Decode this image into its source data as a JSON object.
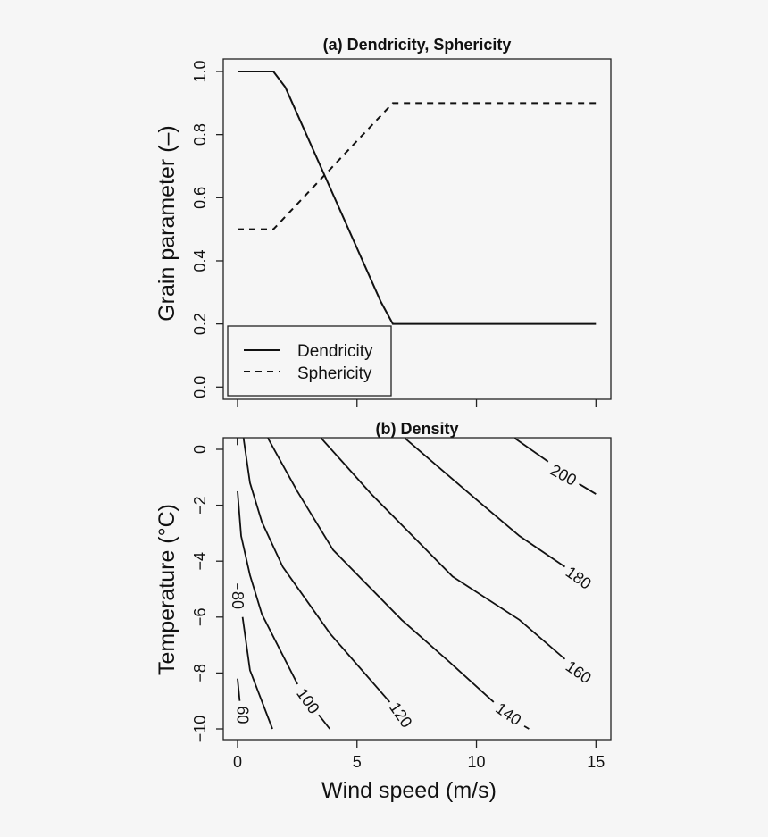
{
  "chart_data": [
    {
      "type": "line",
      "title": "(a) Dendricity, Sphericity",
      "xlabel": "",
      "ylabel": "Grain parameter (–)",
      "xlim": [
        0,
        15
      ],
      "ylim": [
        0,
        1
      ],
      "x_ticks": [
        0,
        5,
        10,
        15
      ],
      "y_ticks": [
        "0.0",
        "0.2",
        "0.4",
        "0.6",
        "0.8",
        "1.0"
      ],
      "grid": false,
      "legend_position": "bottom-left",
      "series": [
        {
          "name": "Dendricity",
          "style": "solid",
          "x": [
            0,
            1.5,
            2.0,
            6.0,
            6.5,
            15
          ],
          "y": [
            1.0,
            1.0,
            0.95,
            0.27,
            0.2,
            0.2
          ]
        },
        {
          "name": "Sphericity",
          "style": "dashed",
          "x": [
            0,
            1.5,
            6.5,
            15
          ],
          "y": [
            0.5,
            0.5,
            0.9,
            0.9
          ]
        }
      ]
    },
    {
      "type": "contour",
      "title": "(b) Density",
      "xlabel": "Wind speed (m/s)",
      "ylabel": "Temperature (°C)",
      "xlim": [
        0,
        15
      ],
      "ylim": [
        -10,
        0
      ],
      "x_ticks": [
        "0",
        "5",
        "10",
        "15"
      ],
      "y_ticks": [
        "−10",
        "−8",
        "−6",
        "−4",
        "−2",
        "0"
      ],
      "grid": false,
      "contours": [
        {
          "level": "60",
          "label_at": [
            0.21,
            -9.5
          ],
          "segments": [
            [
              [
                0,
                -8.2
              ],
              [
                0.09,
                -9.0
              ]
            ]
          ]
        },
        {
          "level": "80",
          "label_at": [
            0,
            -5.4
          ],
          "segments": [
            [
              [
                0,
                -4.8
              ],
              [
                0,
                -5.0
              ]
            ],
            [
              [
                0.21,
                -6.0
              ],
              [
                0.52,
                -7.9
              ],
              [
                1.46,
                -10.0
              ]
            ]
          ]
        },
        {
          "level": "100",
          "label_at": [
            2.95,
            -9.0
          ],
          "segments": [
            [
              [
                0,
                0.4
              ],
              [
                0,
                0.15
              ]
            ],
            [
              [
                0,
                -1.5
              ],
              [
                0.15,
                -3.1
              ],
              [
                0.52,
                -4.5
              ],
              [
                1.02,
                -5.9
              ],
              [
                2.51,
                -8.4
              ]
            ],
            [
              [
                3.4,
                -9.5
              ],
              [
                3.86,
                -10.0
              ]
            ]
          ]
        },
        {
          "level": "120",
          "label_at": [
            6.83,
            -9.5
          ],
          "segments": [
            [
              [
                0.25,
                0.4
              ],
              [
                0.52,
                -1.2
              ],
              [
                1.02,
                -2.6
              ],
              [
                1.89,
                -4.2
              ],
              [
                3.88,
                -6.6
              ],
              [
                6.37,
                -9.04
              ]
            ]
          ]
        },
        {
          "level": "140",
          "label_at": [
            11.34,
            -9.47
          ],
          "segments": [
            [
              [
                1.27,
                0.4
              ],
              [
                2.5,
                -1.5
              ],
              [
                4.0,
                -3.6
              ],
              [
                6.87,
                -6.1
              ],
              [
                8.86,
                -7.6
              ],
              [
                10.72,
                -9.04
              ]
            ],
            [
              [
                12.0,
                -9.9
              ],
              [
                12.2,
                -10.0
              ]
            ]
          ]
        },
        {
          "level": "160",
          "label_at": [
            14.27,
            -7.97
          ],
          "segments": [
            [
              [
                3.5,
                0.4
              ],
              [
                5.6,
                -1.6
              ],
              [
                9.0,
                -4.55
              ],
              [
                11.8,
                -6.1
              ],
              [
                13.7,
                -7.5
              ]
            ]
          ]
        },
        {
          "level": "180",
          "label_at": [
            14.27,
            -4.6
          ],
          "segments": [
            [
              [
                7.0,
                0.4
              ],
              [
                10.0,
                -1.8
              ],
              [
                11.8,
                -3.1
              ],
              [
                13.7,
                -4.2
              ]
            ]
          ]
        },
        {
          "level": "200",
          "label_at": [
            13.64,
            -0.92
          ],
          "segments": [
            [
              [
                11.6,
                0.4
              ],
              [
                13.0,
                -0.44
              ]
            ],
            [
              [
                14.3,
                -1.24
              ],
              [
                15.0,
                -1.6
              ]
            ]
          ]
        }
      ]
    }
  ]
}
